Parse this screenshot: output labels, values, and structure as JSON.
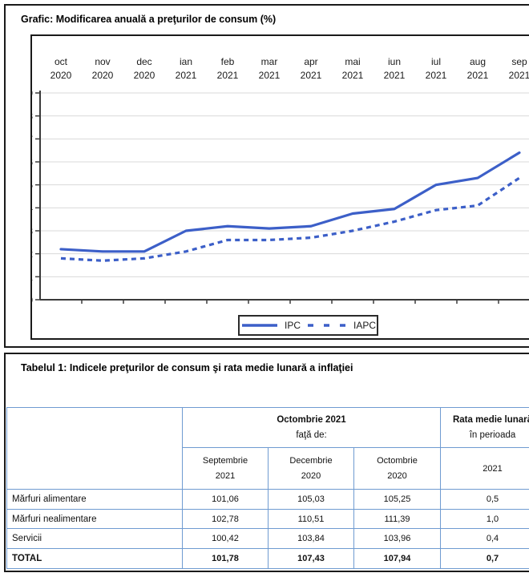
{
  "chart": {
    "title": "Grafic: Modificarea anuală a preţurilor de consum (%)",
    "legend": {
      "ipc": "IPC",
      "iapc": "IAPC"
    },
    "line_color": "#3C5FC8",
    "grid_color": "#D9D9D9",
    "axis_color": "#3b3b3b"
  },
  "chart_data": {
    "type": "line",
    "title": "Modificarea anuală a preţurilor de consum (%)",
    "categories": [
      "oct",
      "nov",
      "dec",
      "ian",
      "feb",
      "mar",
      "apr",
      "mai",
      "iun",
      "iul",
      "aug",
      "sep"
    ],
    "years": [
      "2020",
      "2020",
      "2020",
      "2021",
      "2021",
      "2021",
      "2021",
      "2021",
      "2021",
      "2021",
      "2021",
      "2021"
    ],
    "series": [
      {
        "name": "IPC",
        "style": "solid",
        "values": [
          2.2,
          2.1,
          2.1,
          3.0,
          3.2,
          3.1,
          3.2,
          3.75,
          3.95,
          5.0,
          5.3,
          6.4
        ]
      },
      {
        "name": "IAPC",
        "style": "dashed",
        "values": [
          1.8,
          1.7,
          1.8,
          2.1,
          2.6,
          2.6,
          2.7,
          3.0,
          3.4,
          3.9,
          4.1,
          5.3
        ]
      }
    ],
    "ylim": [
      0,
      9
    ],
    "yticks": [
      0,
      1,
      2,
      3,
      4,
      5,
      6,
      7,
      8,
      9
    ],
    "xlabel": "",
    "ylabel": "",
    "grid": true,
    "legend_position": "bottom-center"
  },
  "table": {
    "title": "Tabelul 1: Indicele preţurilor de consum şi rata medie lunară a inflaţiei",
    "header": {
      "compare_title": "Octombrie 2021",
      "compare_sub": "faţă de:",
      "rate_title": "Rata medie lunară",
      "rate_sub": "în perioada",
      "rate_year": "2021",
      "col_headers": [
        {
          "line1": "Septembrie",
          "line2": "2021"
        },
        {
          "line1": "Decembrie",
          "line2": "2020"
        },
        {
          "line1": "Octombrie",
          "line2": "2020"
        }
      ]
    },
    "rows": [
      {
        "label": "Mărfuri alimentare",
        "values": [
          "101,06",
          "105,03",
          "105,25",
          "0,5"
        ]
      },
      {
        "label": "Mărfuri nealimentare",
        "values": [
          "102,78",
          "110,51",
          "111,39",
          "1,0"
        ]
      },
      {
        "label": "Servicii",
        "values": [
          "100,42",
          "103,84",
          "103,96",
          "0,4"
        ]
      }
    ],
    "total_row": {
      "label": "TOTAL",
      "values": [
        "101,78",
        "107,43",
        "107,94",
        "0,7"
      ]
    }
  }
}
